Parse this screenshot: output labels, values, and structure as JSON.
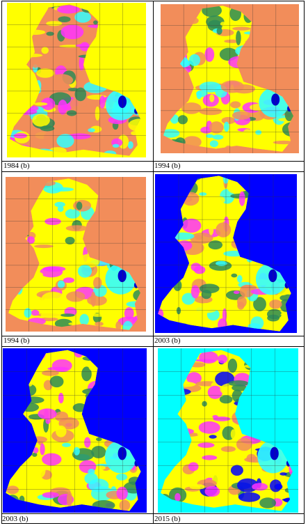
{
  "panels": [
    {
      "caption": "1984 (b)",
      "background": "#ffff00"
    },
    {
      "caption": "1994 (b)",
      "background": "#f28d5a"
    },
    {
      "caption": "1994 (b)",
      "background": "#f28d5a"
    },
    {
      "caption": "2003 (b)",
      "background": "#0000ff"
    },
    {
      "caption": "2003 (b)",
      "background": "#0000ff"
    },
    {
      "caption": "2015 (b)",
      "background": "#00ffff"
    }
  ],
  "legend_colors": {
    "green": "#2e8b57",
    "yellow": "#ffff00",
    "orange": "#f28d5a",
    "magenta": "#ff33ff",
    "cyan": "#33ffff",
    "blue": "#0000ff",
    "lake": "#0000cc"
  }
}
